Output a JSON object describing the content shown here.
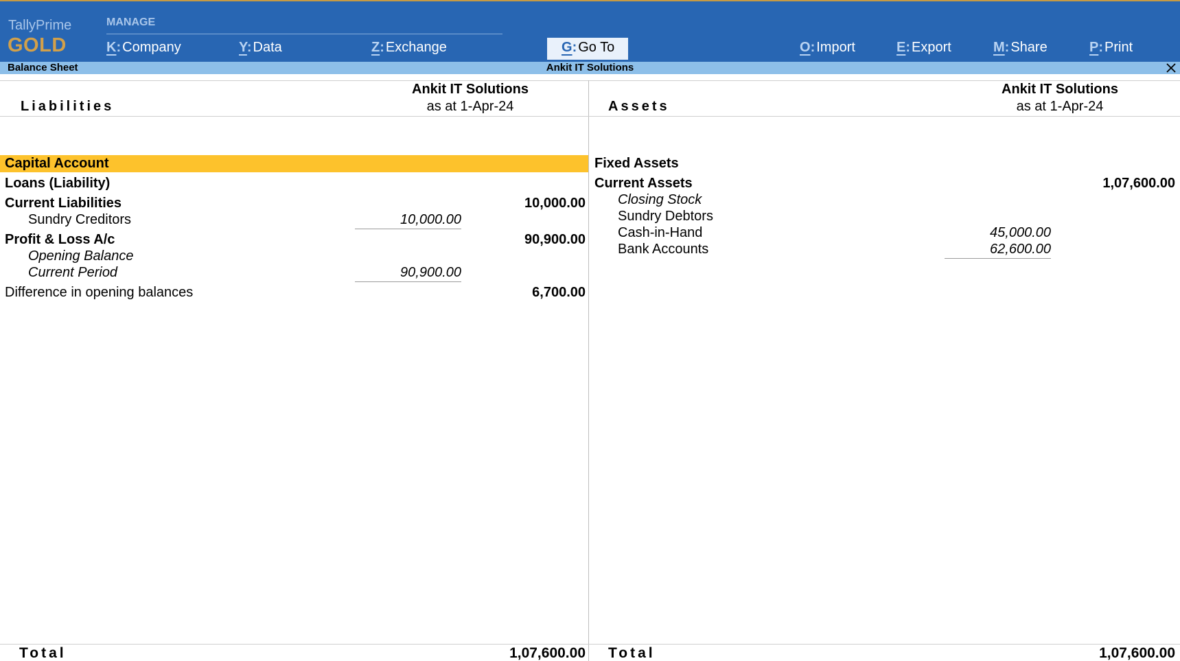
{
  "app": {
    "name": "TallyPrime",
    "edition": "GOLD"
  },
  "topbar": {
    "section_label": "MANAGE",
    "menu": [
      {
        "key": "K",
        "label": "Company"
      },
      {
        "key": "Y",
        "label": "Data"
      },
      {
        "key": "Z",
        "label": "Exchange"
      },
      {
        "key": "G",
        "label": "Go To"
      },
      {
        "key": "O",
        "label": "Import"
      },
      {
        "key": "E",
        "label": "Export"
      },
      {
        "key": "M",
        "label": "Share"
      },
      {
        "key": "P",
        "label": "Print"
      }
    ]
  },
  "titlebar": {
    "report_name": "Balance Sheet",
    "company": "Ankit IT Solutions"
  },
  "liabilities": {
    "title": "Liabilities",
    "company": "Ankit IT Solutions",
    "date": "as at 1-Apr-24",
    "groups": {
      "capital_account": {
        "label": "Capital Account"
      },
      "loans": {
        "label": "Loans (Liability)"
      },
      "current_liabilities": {
        "label": "Current Liabilities",
        "amount": "10,000.00",
        "items": [
          {
            "label": "Sundry Creditors",
            "amount": "10,000.00"
          }
        ]
      },
      "profit_loss": {
        "label": "Profit & Loss A/c",
        "amount": "90,900.00",
        "items": [
          {
            "label": "Opening Balance"
          },
          {
            "label": "Current Period",
            "amount": "90,900.00"
          }
        ]
      },
      "difference": {
        "label": "Difference in opening balances",
        "amount": "6,700.00"
      }
    },
    "total_label": "Total",
    "total": "1,07,600.00"
  },
  "assets": {
    "title": "Assets",
    "company": "Ankit IT Solutions",
    "date": "as at 1-Apr-24",
    "groups": {
      "fixed_assets": {
        "label": "Fixed Assets"
      },
      "current_assets": {
        "label": "Current Assets",
        "amount": "1,07,600.00",
        "items": [
          {
            "label": "Closing Stock"
          },
          {
            "label": "Sundry Debtors"
          },
          {
            "label": "Cash-in-Hand",
            "amount": "45,000.00"
          },
          {
            "label": "Bank Accounts",
            "amount": "62,600.00"
          }
        ]
      }
    },
    "total_label": "Total",
    "total": "1,07,600.00"
  },
  "colors": {
    "topbar_bg": "#2866b3",
    "titlebar_bg": "#8dbfe9",
    "selected_row": "#fdc22c",
    "brand_gold": "#d2a04a"
  }
}
